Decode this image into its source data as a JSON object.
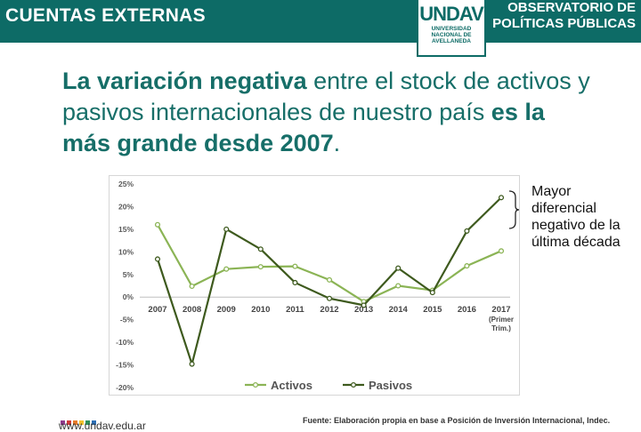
{
  "header": {
    "section_title": "CUENTAS EXTERNAS",
    "logo_mark": "UNDAV",
    "logo_sub": "UNIVERSIDAD NACIONAL DE AVELLANEDA",
    "right_title_line1": "OBSERVATORIO DE",
    "right_title_line2": "POLÍTICAS PÚBLICAS",
    "bar_color": "#0d6b66"
  },
  "headline": {
    "part1_bold": "La variación negativa",
    "part2": " entre el stock de activos y pasivos internacionales de nuestro país ",
    "part3_bold": "es la más grande desde 2007",
    "part4": "."
  },
  "annotation": {
    "line1": "Mayor",
    "line2": "diferencial",
    "line3": "negativo de la",
    "line4": "última década"
  },
  "footer": {
    "url": "www.undav.edu.ar",
    "source": "Fuente: Elaboración propia en base a Posición de Inversión Internacional, Indec.",
    "dot_colors": [
      "#8e3b8c",
      "#d03a3a",
      "#e77b2b",
      "#f2c12e",
      "#2f8f5b",
      "#2c6fb5"
    ]
  },
  "chart_data": {
    "type": "line",
    "categories": [
      "2007",
      "2008",
      "2009",
      "2010",
      "2011",
      "2012",
      "2013",
      "2014",
      "2015",
      "2016",
      "2017"
    ],
    "category_sub": [
      "",
      "",
      "",
      "",
      "",
      "",
      "",
      "",
      "",
      "",
      "(Primer Trim.)"
    ],
    "series": [
      {
        "name": "Activos",
        "color": "#8bb455",
        "values": [
          16.0,
          2.4,
          6.2,
          6.7,
          6.8,
          3.8,
          -1.0,
          2.5,
          1.5,
          6.9,
          10.2
        ]
      },
      {
        "name": "Pasivos",
        "color": "#3e5a1e",
        "values": [
          8.4,
          -14.8,
          15.0,
          10.6,
          3.2,
          -0.3,
          -1.8,
          6.4,
          1.0,
          14.6,
          22.0
        ]
      }
    ],
    "ylim": [
      -20,
      25
    ],
    "yticks": [
      -20,
      -15,
      -10,
      -5,
      0,
      5,
      10,
      15,
      20,
      25
    ],
    "ytick_labels": [
      "-20%",
      "-15%",
      "-10%",
      "-5%",
      "0%",
      "5%",
      "10%",
      "15%",
      "20%",
      "25%"
    ],
    "legend_position": "bottom",
    "grid": false
  }
}
